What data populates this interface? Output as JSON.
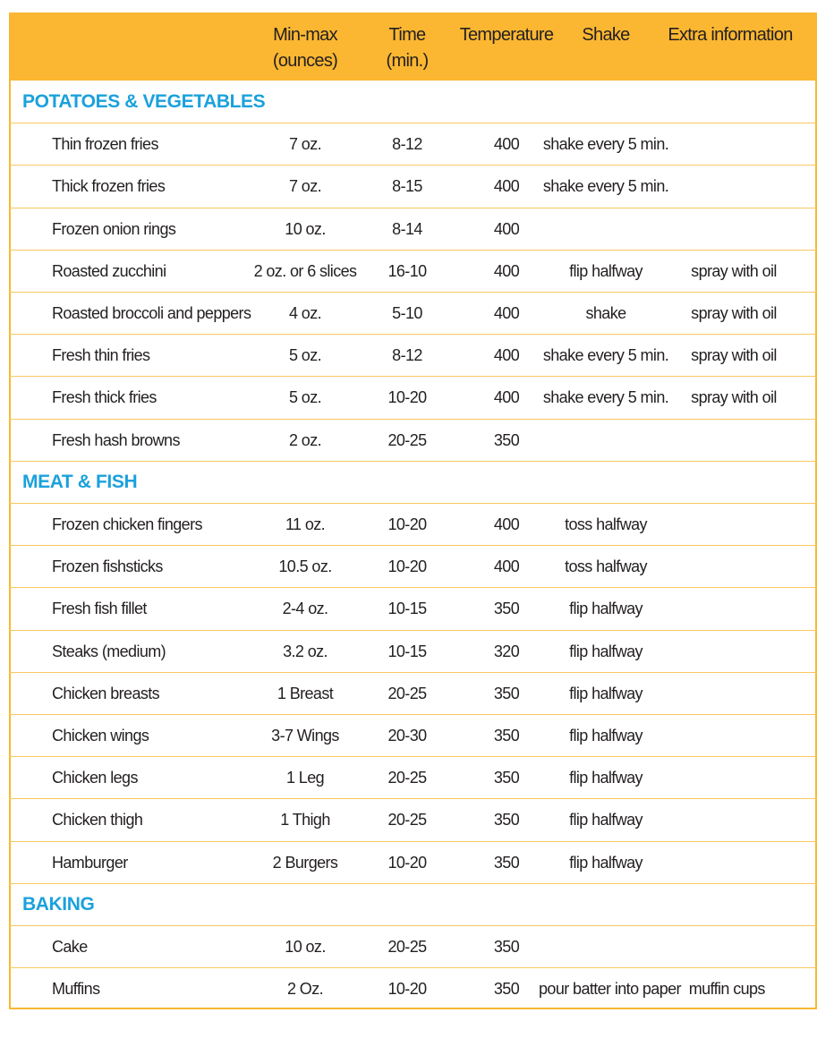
{
  "header": {
    "min_max": [
      "Min-max",
      "(ounces)"
    ],
    "time": [
      "Time",
      "(min.)"
    ],
    "temperature": "Temperature",
    "shake": "Shake",
    "extra": "Extra information"
  },
  "sections": [
    {
      "title": "POTATOES & VEGETABLES",
      "rows": [
        {
          "name": "Thin frozen fries",
          "amount": "7 oz.",
          "time": "8-12",
          "temp": 400,
          "shake": "shake every 5 min."
        },
        {
          "name": "Thick frozen fries",
          "amount": "7 oz.",
          "time": "8-15",
          "temp": 400,
          "shake": "shake every 5 min."
        },
        {
          "name": "Frozen onion rings",
          "amount": "10 oz.",
          "time": "8-14",
          "temp": 400
        },
        {
          "name": "Roasted zucchini",
          "amount": "2 oz. or 6 slices",
          "time": "16-10",
          "temp": 400,
          "shake": "flip halfway",
          "extra": "spray with oil"
        },
        {
          "name": "Roasted broccoli and peppers",
          "amount": "4 oz.",
          "time": "5-10",
          "temp": 400,
          "shake": "shake",
          "extra": "spray with oil"
        },
        {
          "name": "Fresh thin fries",
          "amount": "5 oz.",
          "time": "8-12",
          "temp": 400,
          "shake": "shake every 5 min.",
          "extra": "spray with oil"
        },
        {
          "name": "Fresh thick fries",
          "amount": "5 oz.",
          "time": "10-20",
          "temp": 400,
          "shake": "shake every 5 min.",
          "extra": "spray with oil"
        },
        {
          "name": "Fresh hash browns",
          "amount": "2 oz.",
          "time": "20-25",
          "temp": 350
        }
      ]
    },
    {
      "title": "MEAT & FISH",
      "rows": [
        {
          "name": "Frozen chicken fingers",
          "amount": "11 oz.",
          "time": "10-20",
          "temp": 400,
          "shake": "toss halfway"
        },
        {
          "name": "Frozen fishsticks",
          "amount": "10.5 oz.",
          "time": "10-20",
          "temp": 400,
          "shake": "toss halfway"
        },
        {
          "name": "Fresh fish fillet",
          "amount": "2-4 oz.",
          "time": "10-15",
          "temp": 350,
          "shake": "flip halfway"
        },
        {
          "name": "Steaks (medium)",
          "amount": "3.2 oz.",
          "time": "10-15",
          "temp": 320,
          "shake": "flip halfway"
        },
        {
          "name": "Chicken breasts",
          "amount": "1 Breast",
          "time": "20-25",
          "temp": 350,
          "shake": "flip halfway"
        },
        {
          "name": "Chicken wings",
          "amount": "3-7 Wings",
          "time": "20-30",
          "temp": 350,
          "shake": "flip halfway"
        },
        {
          "name": "Chicken legs",
          "amount": "1 Leg",
          "time": "20-25",
          "temp": 350,
          "shake": "flip halfway"
        },
        {
          "name": "Chicken thigh",
          "amount": "1 Thigh",
          "time": "20-25",
          "temp": 350,
          "shake": "flip halfway"
        },
        {
          "name": "Hamburger",
          "amount": "2 Burgers",
          "time": "10-20",
          "temp": 350,
          "shake": "flip halfway"
        }
      ]
    },
    {
      "title": "BAKING",
      "rows": [
        {
          "name": "Cake",
          "amount": "10 oz.",
          "time": "20-25",
          "temp": 350
        },
        {
          "name": "Muffins",
          "amount": "2 Oz.",
          "time": "10-20",
          "temp": 350,
          "shake": "pour batter into paper  muffin cups"
        }
      ]
    }
  ]
}
